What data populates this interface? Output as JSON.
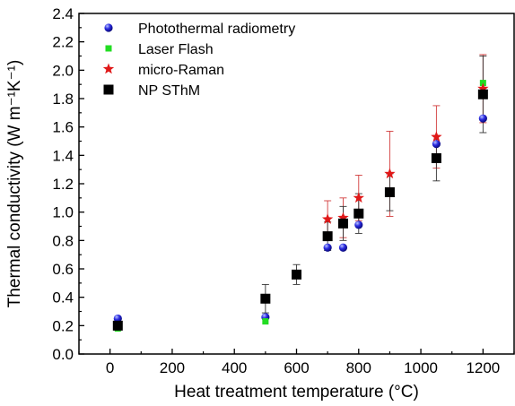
{
  "chart_data": {
    "type": "scatter",
    "title": "",
    "xlabel": "Heat treatment temperature (°C)",
    "ylabel": "Thermal conductivity (W m⁻¹K⁻¹)",
    "xlim": [
      -100,
      1300
    ],
    "ylim": [
      0.0,
      2.4
    ],
    "x_ticks": [
      0,
      200,
      400,
      600,
      800,
      1000,
      1200
    ],
    "y_ticks": [
      0.0,
      0.2,
      0.4,
      0.6,
      0.8,
      1.0,
      1.2,
      1.4,
      1.6,
      1.8,
      2.0,
      2.2,
      2.4
    ],
    "legend_position": "top-left",
    "grid": false,
    "series": [
      {
        "name": "Photothermal radiometry",
        "marker": "blue-sphere",
        "color": "#1a1ad8",
        "points": [
          {
            "x": 25,
            "y": 0.25
          },
          {
            "x": 500,
            "y": 0.26
          },
          {
            "x": 700,
            "y": 0.75
          },
          {
            "x": 750,
            "y": 0.75
          },
          {
            "x": 800,
            "y": 0.91
          },
          {
            "x": 1050,
            "y": 1.48
          },
          {
            "x": 1200,
            "y": 1.66
          }
        ]
      },
      {
        "name": "Laser Flash",
        "marker": "square-small",
        "color": "#22dd22",
        "points": [
          {
            "x": 25,
            "y": 0.18
          },
          {
            "x": 500,
            "y": 0.23
          },
          {
            "x": 1200,
            "y": 1.91
          }
        ]
      },
      {
        "name": "micro-Raman",
        "marker": "star",
        "color": "#e01818",
        "points": [
          {
            "x": 700,
            "y": 0.95,
            "err": 0.13
          },
          {
            "x": 750,
            "y": 0.96,
            "err": 0.14
          },
          {
            "x": 800,
            "y": 1.1,
            "err": 0.16
          },
          {
            "x": 900,
            "y": 1.27,
            "err": 0.3
          },
          {
            "x": 1050,
            "y": 1.53,
            "err": 0.22
          },
          {
            "x": 1200,
            "y": 1.87,
            "err": 0.24
          }
        ]
      },
      {
        "name": "NP SThM",
        "marker": "square",
        "color": "#000000",
        "points": [
          {
            "x": 25,
            "y": 0.2,
            "err": 0.03
          },
          {
            "x": 500,
            "y": 0.39,
            "err": 0.1
          },
          {
            "x": 600,
            "y": 0.56,
            "err": 0.07
          },
          {
            "x": 700,
            "y": 0.83,
            "err": 0.1
          },
          {
            "x": 750,
            "y": 0.92,
            "err": 0.12
          },
          {
            "x": 800,
            "y": 0.99,
            "err": 0.14
          },
          {
            "x": 900,
            "y": 1.14,
            "err": 0.13
          },
          {
            "x": 1050,
            "y": 1.38,
            "err": 0.16
          },
          {
            "x": 1200,
            "y": 1.83,
            "err": 0.27
          }
        ]
      }
    ]
  }
}
